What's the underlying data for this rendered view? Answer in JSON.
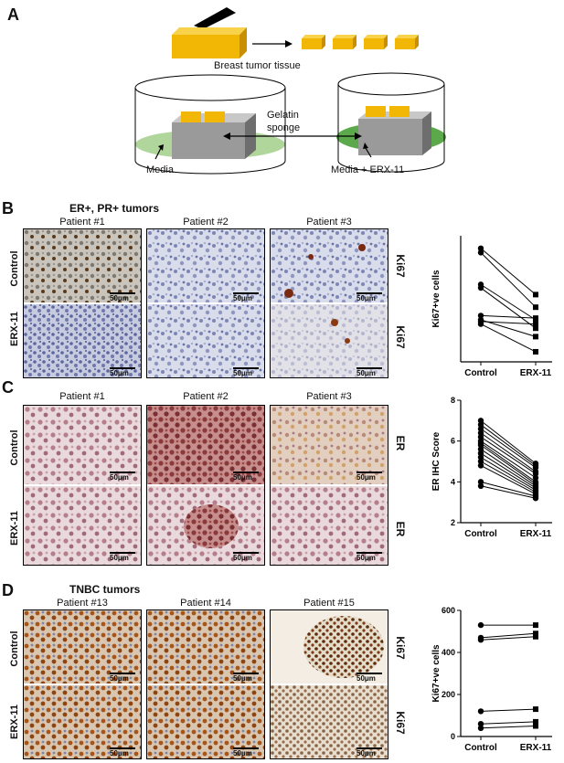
{
  "panel_a": {
    "letter": "A",
    "tissue_label": "Breast tumor tissue",
    "gelatin_label_1": "Gelatin",
    "gelatin_label_2": "sponge",
    "media_label": "Media",
    "media_erx_label": "Media + ERX-11"
  },
  "panel_b": {
    "letter": "B",
    "title": "ER+, PR+ tumors",
    "patients": [
      "Patient #1",
      "Patient #2",
      "Patient #3"
    ],
    "row_labels": [
      "Control",
      "ERX-11"
    ],
    "side_labels": [
      "Ki67",
      "Ki67"
    ],
    "scale_text": "50μm"
  },
  "panel_c": {
    "letter": "C",
    "patients": [
      "Patient #1",
      "Patient #2",
      "Patient #3"
    ],
    "row_labels": [
      "Control",
      "ERX-11"
    ],
    "side_labels": [
      "ER",
      "ER"
    ],
    "scale_text": "50μm"
  },
  "panel_d": {
    "letter": "D",
    "title": "TNBC tumors",
    "patients": [
      "Patient #13",
      "Patient #14",
      "Patient #15"
    ],
    "row_labels": [
      "Control",
      "ERX-11"
    ],
    "side_labels": [
      "Ki67",
      "Ki67"
    ],
    "scale_text": "50μm"
  },
  "colors": {
    "tissue_gold": "#f2b705",
    "media_green": "#6fb548",
    "sponge_gray": "#9a9a9a",
    "ihc_blue": "#9aa5c8",
    "ihc_brown": "#8a4a1a",
    "er_purple": "#b5879a",
    "er_red": "#9a4a50"
  },
  "chart_data": [
    {
      "type": "scatter",
      "subtype": "paired-dot",
      "panel": "B",
      "ylabel": "Ki67+ve cells",
      "categories": [
        "Control",
        "ERX-11"
      ],
      "ylim": [
        0,
        150
      ],
      "yticks": [],
      "series": [
        {
          "values": [
            135,
            80
          ]
        },
        {
          "values": [
            130,
            65
          ]
        },
        {
          "values": [
            92,
            50
          ]
        },
        {
          "values": [
            88,
            40
          ]
        },
        {
          "values": [
            55,
            52
          ]
        },
        {
          "values": [
            50,
            30
          ]
        },
        {
          "values": [
            48,
            45
          ]
        },
        {
          "values": [
            45,
            12
          ]
        }
      ]
    },
    {
      "type": "scatter",
      "subtype": "paired-dot",
      "panel": "C",
      "ylabel": "ER IHC Score",
      "categories": [
        "Control",
        "ERX-11"
      ],
      "ylim": [
        2,
        8
      ],
      "yticks": [
        2,
        4,
        6,
        8
      ],
      "series": [
        {
          "values": [
            7.0,
            4.9
          ]
        },
        {
          "values": [
            6.8,
            4.8
          ]
        },
        {
          "values": [
            6.6,
            4.7
          ]
        },
        {
          "values": [
            6.4,
            4.5
          ]
        },
        {
          "values": [
            6.2,
            4.4
          ]
        },
        {
          "values": [
            6.0,
            4.2
          ]
        },
        {
          "values": [
            5.9,
            4.0
          ]
        },
        {
          "values": [
            5.8,
            3.9
          ]
        },
        {
          "values": [
            5.6,
            3.8
          ]
        },
        {
          "values": [
            5.4,
            3.7
          ]
        },
        {
          "values": [
            5.2,
            3.6
          ]
        },
        {
          "values": [
            5.0,
            3.5
          ]
        },
        {
          "values": [
            4.8,
            3.4
          ]
        },
        {
          "values": [
            4.0,
            3.3
          ]
        },
        {
          "values": [
            3.8,
            3.2
          ]
        }
      ]
    },
    {
      "type": "scatter",
      "subtype": "paired-dot",
      "panel": "D",
      "ylabel": "Ki67+ve cells",
      "categories": [
        "Control",
        "ERX-11"
      ],
      "ylim": [
        0,
        600
      ],
      "yticks": [
        0,
        200,
        400,
        600
      ],
      "series": [
        {
          "values": [
            530,
            530
          ]
        },
        {
          "values": [
            470,
            490
          ]
        },
        {
          "values": [
            460,
            475
          ]
        },
        {
          "values": [
            120,
            130
          ]
        },
        {
          "values": [
            60,
            70
          ]
        },
        {
          "values": [
            40,
            50
          ]
        }
      ]
    }
  ]
}
